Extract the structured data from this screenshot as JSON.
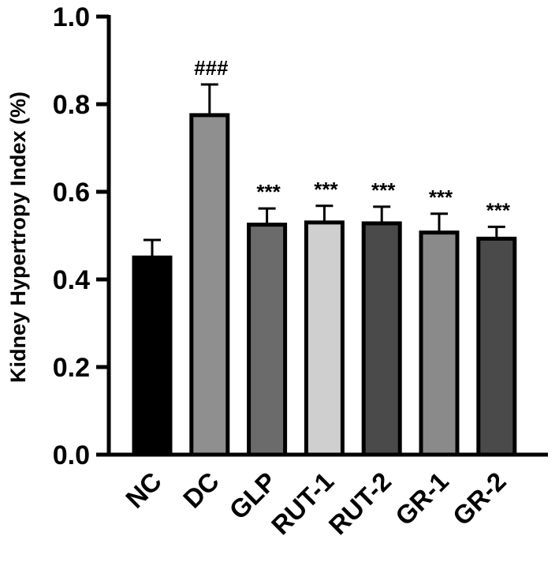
{
  "chart_data": {
    "type": "bar",
    "title": "",
    "xlabel": "",
    "ylabel": "Kidney Hypertropy Index (%)",
    "ylim": [
      0,
      1.0
    ],
    "yticks": [
      "0.0",
      "0.2",
      "0.4",
      "0.6",
      "0.8",
      "1.0"
    ],
    "categories": [
      "NC",
      "DC",
      "GLP",
      "RUT-1",
      "RUT-2",
      "GR-1",
      "GR-2"
    ],
    "values": [
      0.45,
      0.775,
      0.525,
      0.53,
      0.528,
      0.507,
      0.493
    ],
    "errors": [
      0.04,
      0.07,
      0.037,
      0.038,
      0.038,
      0.043,
      0.027
    ],
    "annotations": [
      "",
      "###",
      "***",
      "***",
      "***",
      "***",
      "***"
    ],
    "colors": [
      "#000000",
      "#8f8f8f",
      "#6b6b6b",
      "#cfcfcf",
      "#4a4a4a",
      "#8a8a8a",
      "#4a4a4a"
    ],
    "grid": false,
    "legend": "none"
  }
}
